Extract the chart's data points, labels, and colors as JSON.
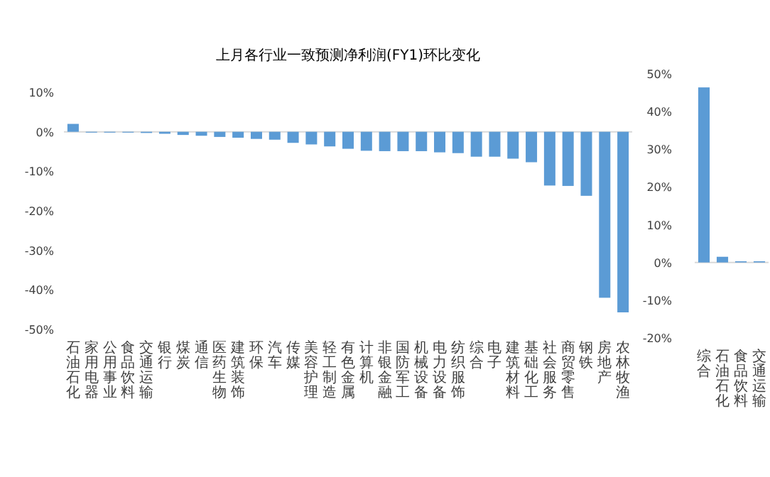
{
  "chart_data": [
    {
      "type": "bar",
      "title": "上月各行业一致预测净利润(FY1)环比变化",
      "categories": [
        "石油石化",
        "家用电器",
        "公用事业",
        "食品饮料",
        "交通运输",
        "银行",
        "煤炭",
        "通信",
        "医药生物",
        "建筑装饰",
        "环保",
        "汽车",
        "传媒",
        "美容护理",
        "轻工制造",
        "有色金属",
        "计算机",
        "非银金融",
        "国防军工",
        "机械设备",
        "电力设备",
        "纺织服饰",
        "综合",
        "电子",
        "建筑材料",
        "基础化工",
        "社会服务",
        "商贸零售",
        "钢铁",
        "房地产",
        "农林牧渔"
      ],
      "series": [
        {
          "color": "#5b9bd5",
          "values": [
            2,
            -0.2,
            -0.2,
            -0.2,
            -0.3,
            -0.5,
            -0.8,
            -1,
            -1.3,
            -1.5,
            -1.8,
            -2,
            -2.8,
            -3.2,
            -3.7,
            -4.3,
            -4.8,
            -4.9,
            -4.9,
            -4.9,
            -5.2,
            -5.4,
            -6.3,
            -6.3,
            -6.8,
            -7.7,
            -13.6,
            -13.7,
            -16.2,
            -42,
            -45.7
          ]
        }
      ],
      "ylim": [
        -50,
        10
      ],
      "yticks": [
        {
          "value": -50,
          "label": "-50%"
        },
        {
          "value": -40,
          "label": "-40%"
        },
        {
          "value": -30,
          "label": "-30%"
        },
        {
          "value": -20,
          "label": "-20%"
        },
        {
          "value": -10,
          "label": "-10%"
        },
        {
          "value": 0,
          "label": "0%"
        },
        {
          "value": 10,
          "label": "10%"
        }
      ]
    },
    {
      "type": "bar",
      "categories": [
        "综合",
        "石油石化",
        "食品饮料",
        "交通运输"
      ],
      "series": [
        {
          "color": "#5b9bd5",
          "values": [
            46.4,
            1.5,
            0.3,
            0.3
          ]
        }
      ],
      "ylim": [
        -20,
        50
      ],
      "yticks": [
        {
          "value": -20,
          "label": "-20%"
        },
        {
          "value": -10,
          "label": "-10%"
        },
        {
          "value": 0,
          "label": "0%"
        },
        {
          "value": 10,
          "label": "10%"
        },
        {
          "value": 20,
          "label": "20%"
        },
        {
          "value": 30,
          "label": "30%"
        },
        {
          "value": 40,
          "label": "40%"
        },
        {
          "value": 50,
          "label": "50%"
        }
      ]
    }
  ]
}
